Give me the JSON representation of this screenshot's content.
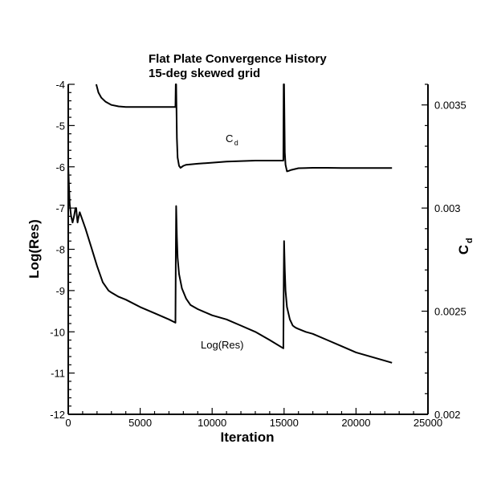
{
  "chart_data": {
    "type": "line",
    "title": "Flat Plate Convergence History",
    "subtitle": "15-deg skewed grid",
    "xlabel": "Iteration",
    "ylabel_left": "Log(Res)",
    "ylabel_right": "C",
    "ylabel_right_sub": "d",
    "xlim": [
      0,
      25000
    ],
    "ylim_left": [
      -12,
      -4
    ],
    "ylim_right": [
      0.002,
      0.0036
    ],
    "x_ticks": [
      "0",
      "5000",
      "10000",
      "15000",
      "20000",
      "25000"
    ],
    "y_left_ticks": [
      "-4",
      "-5",
      "-6",
      "-7",
      "-8",
      "-9",
      "-10",
      "-11",
      "-12"
    ],
    "y_right_ticks": [
      "0.0035",
      "0.003",
      "0.0025",
      "0.002"
    ],
    "grid": false,
    "annotations": [
      {
        "text": "C",
        "sub": "d",
        "x": 11200,
        "y": 0.00332,
        "axis": "right"
      },
      {
        "text": "Log(Res)",
        "x": 10700,
        "y": -10.4,
        "axis": "left"
      }
    ],
    "series": [
      {
        "name": "Log(Res)",
        "axis": "left",
        "x": [
          0,
          100,
          200,
          300,
          400,
          500,
          550,
          600,
          650,
          700,
          800,
          1200,
          1600,
          2000,
          2400,
          2800,
          3000,
          3500,
          4000,
          5000,
          6000,
          7000,
          7450,
          7480,
          7500,
          7550,
          7600,
          7700,
          7900,
          8200,
          8500,
          9000,
          10000,
          11000,
          12000,
          13000,
          14000,
          14950,
          14980,
          15000,
          15050,
          15100,
          15200,
          15400,
          15600,
          15800,
          16000,
          16500,
          17000,
          18000,
          19000,
          20000,
          21000,
          22000,
          22500
        ],
        "y": [
          -6.0,
          -6.9,
          -7.2,
          -7.35,
          -7.2,
          -7.0,
          -7.0,
          -7.2,
          -7.35,
          -7.25,
          -7.1,
          -7.5,
          -7.95,
          -8.4,
          -8.8,
          -9.0,
          -9.05,
          -9.15,
          -9.22,
          -9.4,
          -9.55,
          -9.7,
          -9.78,
          -8.0,
          -6.95,
          -7.7,
          -8.2,
          -8.6,
          -8.95,
          -9.2,
          -9.35,
          -9.45,
          -9.6,
          -9.7,
          -9.85,
          -10.0,
          -10.2,
          -10.4,
          -8.7,
          -7.8,
          -8.5,
          -9.0,
          -9.4,
          -9.7,
          -9.85,
          -9.9,
          -9.93,
          -10.0,
          -10.05,
          -10.2,
          -10.35,
          -10.5,
          -10.6,
          -10.7,
          -10.75
        ]
      },
      {
        "name": "C",
        "axis": "right",
        "x": [
          1950,
          2100,
          2300,
          2600,
          3000,
          3500,
          4000,
          5000,
          6000,
          7000,
          7450,
          7470,
          7500,
          7550,
          7600,
          7700,
          7800,
          8000,
          8200,
          9000,
          10000,
          11000,
          12000,
          13000,
          14000,
          14950,
          14970,
          15000,
          15050,
          15100,
          15200,
          15300,
          15500,
          16000,
          17000,
          18000,
          19000,
          20000,
          21000,
          22000,
          22500
        ],
        "y": [
          0.0036,
          0.00356,
          0.003535,
          0.003515,
          0.0035,
          0.003493,
          0.00349,
          0.00349,
          0.00349,
          0.00349,
          0.00349,
          0.0036,
          0.0036,
          0.00334,
          0.003245,
          0.003205,
          0.003195,
          0.003205,
          0.00321,
          0.003215,
          0.00322,
          0.003225,
          0.003228,
          0.00323,
          0.00323,
          0.00323,
          0.0036,
          0.0036,
          0.00327,
          0.00321,
          0.003178,
          0.00318,
          0.003185,
          0.003193,
          0.003195,
          0.003195,
          0.003194,
          0.003194,
          0.003194,
          0.003194,
          0.003194
        ]
      }
    ]
  }
}
